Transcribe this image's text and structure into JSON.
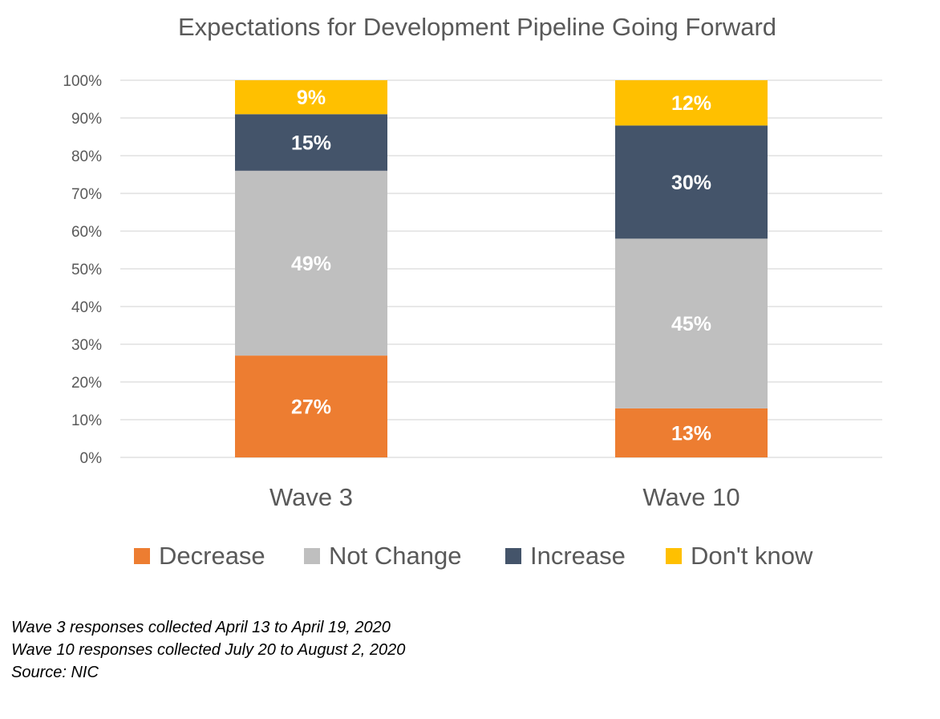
{
  "chart_data": {
    "type": "bar",
    "stacked": true,
    "title": "Expectations for Development Pipeline Going Forward",
    "xlabel": "",
    "ylabel": "",
    "ylim": [
      0,
      100
    ],
    "yticks": [
      "0%",
      "10%",
      "20%",
      "30%",
      "40%",
      "50%",
      "60%",
      "70%",
      "80%",
      "90%",
      "100%"
    ],
    "categories": [
      "Wave 3",
      "Wave 10"
    ],
    "series": [
      {
        "name": "Decrease",
        "color": "#ED7D31",
        "values": [
          27,
          13
        ],
        "labels": [
          "27%",
          "13%"
        ]
      },
      {
        "name": "Not Change",
        "color": "#BFBFBF",
        "values": [
          49,
          45
        ],
        "labels": [
          "49%",
          "45%"
        ]
      },
      {
        "name": "Increase",
        "color": "#44546A",
        "values": [
          15,
          30
        ],
        "labels": [
          "15%",
          "30%"
        ]
      },
      {
        "name": "Don't know",
        "color": "#FFC000",
        "values": [
          9,
          12
        ],
        "labels": [
          "9%",
          "12%"
        ]
      }
    ],
    "grid": true,
    "legend": "bottom"
  },
  "notes": {
    "line1": "Wave 3 responses collected April 13 to April 19, 2020",
    "line2": "Wave 10 responses collected July 20 to August 2, 2020",
    "line3": "Source: NIC"
  },
  "colors": {
    "title": "#595959",
    "axis_text": "#595959",
    "gridline": "#D9D9D9",
    "data_label": "#FFFFFF"
  }
}
